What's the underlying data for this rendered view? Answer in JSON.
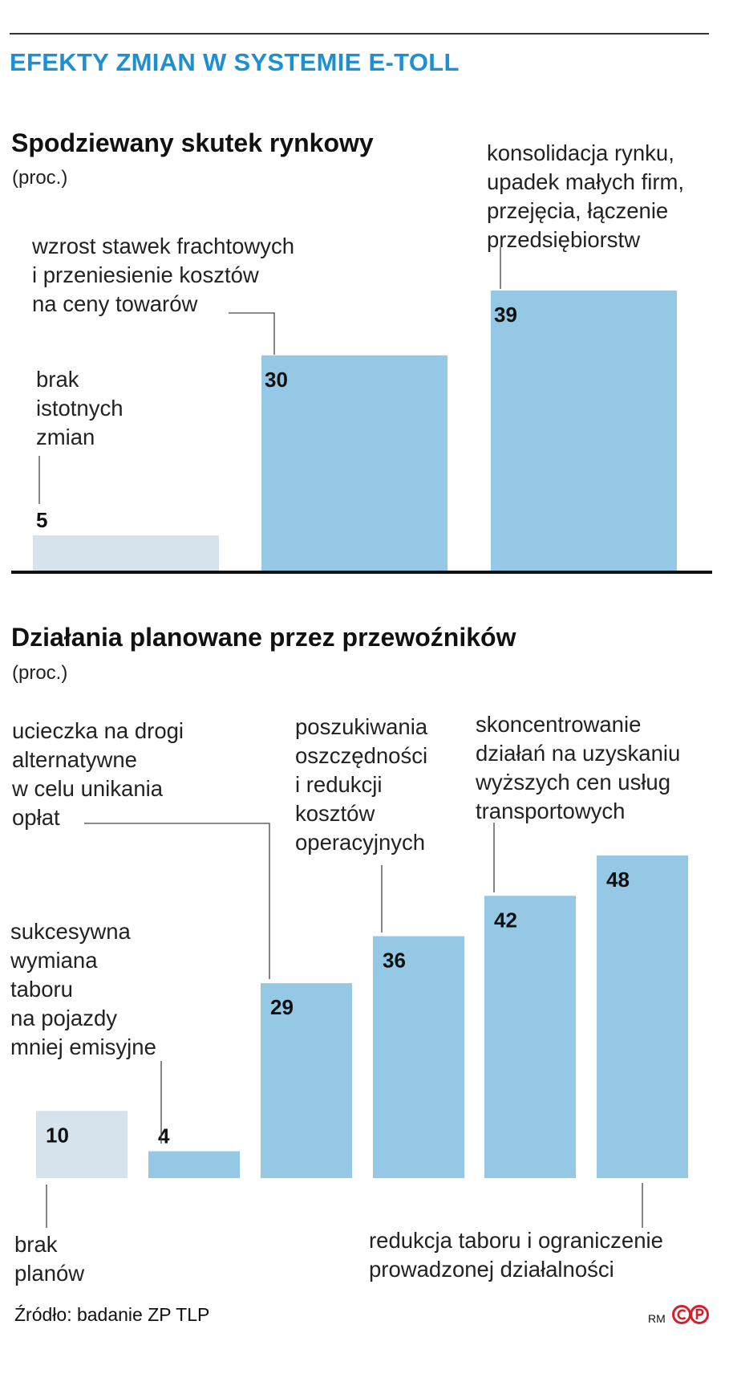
{
  "title": "EFEKTY ZMIAN W SYSTEMIE E-TOLL",
  "chart_data": [
    {
      "type": "bar",
      "title": "Spodziewany skutek rynkowy",
      "subtitle": "(proc.)",
      "categories": [
        [
          "brak",
          "istotnych",
          "zmian"
        ],
        [
          "wzrost stawek frachtowych",
          "i przeniesienie kosztów",
          "na ceny towarów"
        ],
        [
          "konsolidacja rynku,",
          "upadek małych firm,",
          "przejęcia, łączenie",
          "przedsiębiorstw"
        ]
      ],
      "values": [
        5,
        30,
        39
      ],
      "value_labels": [
        "5",
        "30",
        "39"
      ],
      "colors": [
        "#d6e3ec",
        "#95c8e4",
        "#95c8e4"
      ],
      "ylim": [
        0,
        39
      ]
    },
    {
      "type": "bar",
      "title": "Działania planowane przez przewoźników",
      "subtitle": "(proc.)",
      "categories": [
        [
          "brak",
          "planów"
        ],
        [
          "sukcesywna",
          "wymiana",
          "taboru",
          "na pojazdy",
          "mniej emisyjne"
        ],
        [
          "ucieczka na drogi",
          "alternatywne",
          "w celu unikania",
          "opłat"
        ],
        [
          "poszukiwania",
          "oszczędności",
          "i redukcji",
          "kosztów",
          "operacyjnych"
        ],
        [
          "skoncentrowanie",
          "działań na uzyskaniu",
          "wyższych cen usług",
          "transportowych"
        ],
        [
          "redukcja taboru i ograniczenie",
          "prowadzonej działalności"
        ]
      ],
      "values": [
        10,
        4,
        29,
        36,
        42,
        48
      ],
      "value_labels": [
        "10",
        "4",
        "29",
        "36",
        "42",
        "48"
      ],
      "colors": [
        "#d6e3ec",
        "#95c8e4",
        "#95c8e4",
        "#95c8e4",
        "#95c8e4",
        "#95c8e4"
      ],
      "ylim": [
        0,
        48
      ]
    }
  ],
  "source": "Źródło: badanie ZP TLP",
  "credit": "RM",
  "logo_colors": {
    "ring": "#d4202a"
  }
}
